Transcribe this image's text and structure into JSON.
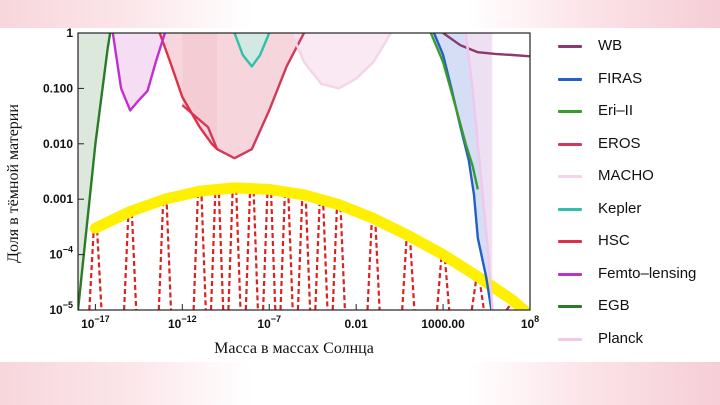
{
  "chart_data": {
    "type": "area",
    "title": "",
    "xlabel": "Масса в массах Солнца",
    "ylabel": "Доля в тёмной материи",
    "xscale": "log",
    "yscale": "log",
    "xlim": [
      1e-18,
      100000000.0
    ],
    "ylim": [
      1e-05,
      1
    ],
    "x_ticks": [
      {
        "value": 1e-17,
        "label": "10^-17"
      },
      {
        "value": 1e-12,
        "label": "10^-12"
      },
      {
        "value": 1e-07,
        "label": "10^-7"
      },
      {
        "value": 0.01,
        "label": "0.01"
      },
      {
        "value": 1000,
        "label": "1000.00"
      },
      {
        "value": 100000000.0,
        "label": "10^8"
      }
    ],
    "y_ticks": [
      {
        "value": 1e-05,
        "label": "10^-5"
      },
      {
        "value": 0.0001,
        "label": "10^-4"
      },
      {
        "value": 0.001,
        "label": "0.001"
      },
      {
        "value": 0.01,
        "label": "0.010"
      },
      {
        "value": 0.1,
        "label": "0.100"
      },
      {
        "value": 1,
        "label": "1"
      }
    ],
    "grid": false,
    "legend_position": "right",
    "series": [
      {
        "name": "WB",
        "color": "#8b3a6e",
        "fill": "none",
        "points": [
          [
            1000.0,
            1
          ],
          [
            10000.0,
            0.6
          ],
          [
            100000.0,
            0.45
          ],
          [
            1000000.0,
            0.42
          ],
          [
            10000000.0,
            0.4
          ],
          [
            100000000.0,
            0.38
          ]
        ]
      },
      {
        "name": "FIRAS",
        "color": "#2060c8",
        "fill": "#c7d3f2",
        "points": [
          [
            300.0,
            1
          ],
          [
            1000.0,
            0.4
          ],
          [
            3000.0,
            0.1
          ],
          [
            10000.0,
            0.02
          ],
          [
            30000.0,
            0.005
          ],
          [
            60000.0,
            0.0012
          ],
          [
            100000.0,
            0.0002
          ],
          [
            300000.0,
            4e-05
          ],
          [
            600000.0,
            1e-05
          ]
        ]
      },
      {
        "name": "Eri–II",
        "color": "#3a9a2a",
        "fill": "none",
        "points": [
          [
            200.0,
            1
          ],
          [
            1000.0,
            0.3
          ],
          [
            5000.0,
            0.05
          ],
          [
            20000.0,
            0.01
          ],
          [
            50000.0,
            0.004
          ],
          [
            100000.0,
            0.0015
          ]
        ]
      },
      {
        "name": "EROS",
        "color": "#d03a5a",
        "fill": "#f3c8d0",
        "points": [
          [
            1e-12,
            0.05
          ],
          [
            3e-11,
            0.02
          ],
          [
            1e-10,
            0.008
          ],
          [
            1e-09,
            0.0055
          ],
          [
            1e-08,
            0.008
          ],
          [
            1e-07,
            0.04
          ],
          [
            1e-06,
            0.25
          ],
          [
            1e-05,
            1
          ]
        ]
      },
      {
        "name": "MACHO",
        "color": "#f4d4e8",
        "fill": "#f8e2ee",
        "points": [
          [
            2e-06,
            1
          ],
          [
            1e-05,
            0.3
          ],
          [
            0.0001,
            0.12
          ],
          [
            0.001,
            0.1
          ],
          [
            0.01,
            0.15
          ],
          [
            0.1,
            0.3
          ],
          [
            1,
            1
          ]
        ]
      },
      {
        "name": "Kepler",
        "color": "#30c0a8",
        "fill": "#c7ede4",
        "points": [
          [
            1e-09,
            1
          ],
          [
            3e-09,
            0.4
          ],
          [
            1e-08,
            0.25
          ],
          [
            3e-08,
            0.4
          ],
          [
            1e-07,
            1
          ]
        ]
      },
      {
        "name": "HSC",
        "color": "#e03048",
        "fill": "#f3c8d0",
        "points": [
          [
            5e-14,
            1
          ],
          [
            2e-13,
            0.3
          ],
          [
            1e-12,
            0.07
          ],
          [
            1e-11,
            0.02
          ],
          [
            5e-11,
            0.01
          ],
          [
            1e-10,
            0.008
          ]
        ]
      },
      {
        "name": "Femto–lensing",
        "color": "#c030d0",
        "fill": "#f2d2f0",
        "points": [
          [
            1e-16,
            1
          ],
          [
            3e-16,
            0.1
          ],
          [
            1e-15,
            0.04
          ],
          [
            3e-15,
            0.06
          ],
          [
            1e-14,
            0.09
          ],
          [
            3e-14,
            0.3
          ],
          [
            1e-13,
            1
          ]
        ]
      },
      {
        "name": "EGB",
        "color": "#2a7a28",
        "fill": "#cfe0cf",
        "points": [
          [
            1e-18,
            1e-05
          ],
          [
            1e-17,
            0.01
          ],
          [
            5e-17,
            0.5
          ],
          [
            7e-17,
            1
          ]
        ]
      },
      {
        "name": "Planck",
        "color": "#f0c8ec",
        "fill": "#f6e0f2",
        "points": [
          [
            20000.0,
            1
          ],
          [
            50000.0,
            0.1
          ],
          [
            100000.0,
            0.01
          ],
          [
            200000.0,
            0.001
          ],
          [
            400000.0,
            0.0001
          ],
          [
            700000.0,
            1e-05
          ]
        ]
      }
    ],
    "envelope": {
      "color": "#ffef00",
      "points": [
        [
          1e-17,
          0.0003
        ],
        [
          1e-15,
          0.0006
        ],
        [
          1e-13,
          0.001
        ],
        [
          1e-11,
          0.0014
        ],
        [
          1e-09,
          0.0016
        ],
        [
          1e-07,
          0.0015
        ],
        [
          1e-05,
          0.0012
        ],
        [
          0.001,
          0.0008
        ],
        [
          0.1,
          0.00045
        ],
        [
          10,
          0.00022
        ],
        [
          1000.0,
          0.0001
        ],
        [
          100000.0,
          4e-05
        ],
        [
          10000000.0,
          1.5e-05
        ],
        [
          100000000.0,
          8e-06
        ]
      ]
    },
    "spikes": {
      "color": "#e02020",
      "style": "dashed",
      "masses": [
        1e-17,
        1e-15,
        1e-13,
        1e-11,
        1e-10,
        1e-09,
        1e-08,
        1e-07,
        1e-06,
        1e-05,
        0.0001,
        0.001,
        0.1,
        10,
        1000.0,
        100000.0,
        10000000.0
      ]
    }
  }
}
